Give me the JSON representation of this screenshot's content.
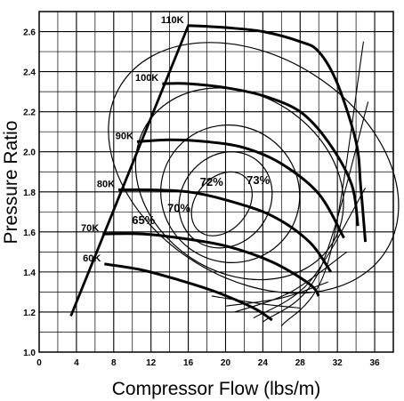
{
  "chart_data": {
    "type": "line",
    "title": "",
    "xlabel": "Compressor Flow (lbs/m)",
    "ylabel": "Pressure Ratio",
    "xlim": [
      0,
      38
    ],
    "ylim": [
      1.0,
      2.7
    ],
    "x_ticks": [
      "0",
      "4",
      "8",
      "12",
      "16",
      "20",
      "24",
      "28",
      "32",
      "36"
    ],
    "y_ticks": [
      "1.0",
      "1.2",
      "1.4",
      "1.6",
      "1.8",
      "2.0",
      "2.2",
      "2.4",
      "2.6"
    ],
    "grid": true,
    "surge_line": [
      [
        3.4,
        1.18
      ],
      [
        16.0,
        2.63
      ]
    ],
    "speed_lines": [
      {
        "name": "60K",
        "points": [
          [
            7.0,
            1.44
          ],
          [
            11.0,
            1.41
          ],
          [
            15.0,
            1.36
          ],
          [
            19.0,
            1.3
          ],
          [
            23.0,
            1.22
          ],
          [
            25.0,
            1.16
          ]
        ]
      },
      {
        "name": "70K",
        "points": [
          [
            6.8,
            1.59
          ],
          [
            11.0,
            1.59
          ],
          [
            15.0,
            1.57
          ],
          [
            20.0,
            1.53
          ],
          [
            25.0,
            1.45
          ],
          [
            29.0,
            1.34
          ],
          [
            30.0,
            1.28
          ]
        ]
      },
      {
        "name": "80K",
        "points": [
          [
            8.5,
            1.81
          ],
          [
            12.0,
            1.81
          ],
          [
            16.0,
            1.8
          ],
          [
            20.0,
            1.76
          ],
          [
            25.0,
            1.68
          ],
          [
            29.0,
            1.55
          ],
          [
            31.3,
            1.4
          ]
        ]
      },
      {
        "name": "90K",
        "points": [
          [
            10.5,
            2.05
          ],
          [
            14.0,
            2.06
          ],
          [
            18.0,
            2.05
          ],
          [
            22.0,
            2.02
          ],
          [
            26.0,
            1.94
          ],
          [
            30.0,
            1.79
          ],
          [
            32.7,
            1.57
          ]
        ]
      },
      {
        "name": "100K",
        "points": [
          [
            13.2,
            2.34
          ],
          [
            16.0,
            2.34
          ],
          [
            20.0,
            2.32
          ],
          [
            24.0,
            2.28
          ],
          [
            28.0,
            2.2
          ],
          [
            31.0,
            2.05
          ],
          [
            33.5,
            1.84
          ],
          [
            34.2,
            1.63
          ]
        ]
      },
      {
        "name": "110K",
        "points": [
          [
            15.9,
            2.63
          ],
          [
            20.0,
            2.62
          ],
          [
            24.0,
            2.6
          ],
          [
            28.0,
            2.55
          ],
          [
            30.0,
            2.5
          ],
          [
            32.0,
            2.34
          ],
          [
            34.0,
            2.05
          ],
          [
            34.5,
            1.83
          ],
          [
            35.0,
            1.55
          ]
        ]
      }
    ],
    "efficiency_labels": [
      "65%",
      "70%",
      "72%",
      "73%"
    ]
  }
}
